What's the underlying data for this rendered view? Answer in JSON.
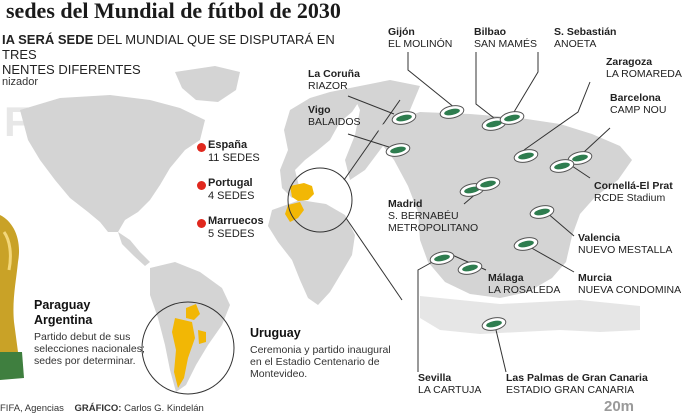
{
  "header": {
    "title": "sedes del Mundial de fútbol de 2030",
    "subtitle_bold": "IA SERÁ SEDE",
    "subtitle_rest": "DEL MUNDIAL QUE SE DISPUTARÁ EN TRES",
    "subtitle_line2": "NENTES DIFERENTES",
    "organizer": "nizador",
    "watermark": "FIFA"
  },
  "hosts": [
    {
      "country": "España",
      "sedes": "11 SEDES"
    },
    {
      "country": "Portugal",
      "sedes": "4 SEDES"
    },
    {
      "country": "Marruecos",
      "sedes": "5 SEDES"
    }
  ],
  "south_america": {
    "paraguay": "Paraguay",
    "argentina": "Argentina",
    "pa_desc": "Partido debut de sus selecciones nacionales; sedes por determinar.",
    "uruguay": "Uruguay",
    "uy_desc": "Ceremonia y partido inaugural en el Estadio Centenario de Montevideo."
  },
  "stadiums": {
    "gijon": {
      "city": "Gijón",
      "stadium": "EL MOLINÓN"
    },
    "bilbao": {
      "city": "Bilbao",
      "stadium": "SAN MAMÉS"
    },
    "sansebastian": {
      "city": "S. Sebastián",
      "stadium": "ANOETA"
    },
    "zaragoza": {
      "city": "Zaragoza",
      "stadium": "LA ROMAREDA"
    },
    "coruna": {
      "city": "La Coruña",
      "stadium": "RIAZOR"
    },
    "vigo": {
      "city": "Vigo",
      "stadium": "BALAIDOS"
    },
    "barcelona": {
      "city": "Barcelona",
      "stadium": "CAMP NOU"
    },
    "cornella": {
      "city": "Cornellá-El Prat",
      "stadium": "RCDE Stadium"
    },
    "madrid": {
      "city": "Madrid",
      "stadium1": "S. BERNABÉU",
      "stadium2": "METROPOLITANO"
    },
    "valencia": {
      "city": "Valencia",
      "stadium": "NUEVO MESTALLA"
    },
    "malaga": {
      "city": "Málaga",
      "stadium": "LA ROSALEDA"
    },
    "murcia": {
      "city": "Murcia",
      "stadium": "NUEVA CONDOMINA"
    },
    "sevilla": {
      "city": "Sevilla",
      "stadium": "LA CARTUJA"
    },
    "laspalmas": {
      "city": "Las Palmas de Gran Canaria",
      "stadium": "ESTADIO GRAN CANARIA"
    }
  },
  "footer": {
    "source": "FIFA, Agencias",
    "grafico_label": "GRÁFICO:",
    "author": "Carlos G. Kindelán",
    "brand": "20m"
  },
  "colors": {
    "land": "#d4d4d4",
    "highlight": "#f2b705",
    "marker": "#e0281e",
    "stadium_green": "#2e7d4f"
  }
}
